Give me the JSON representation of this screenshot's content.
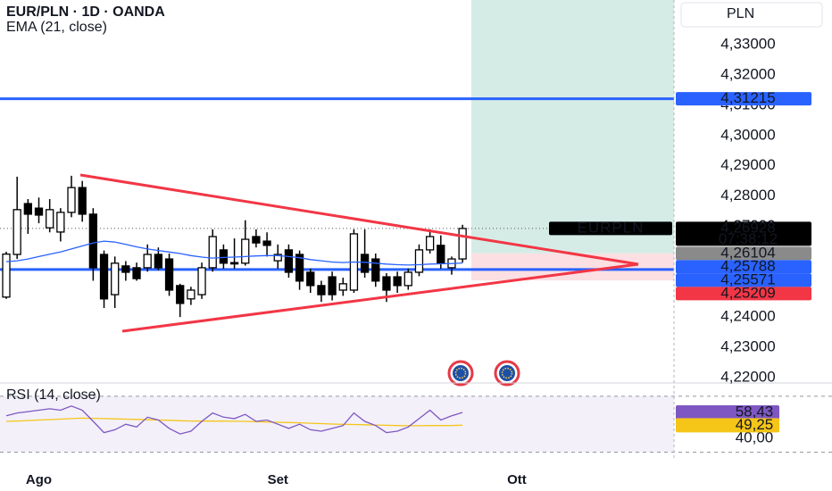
{
  "chart_data": {
    "type": "candlestick",
    "title": "EUR/PLN · 1D · OANDA",
    "currency": "PLN",
    "categories": [
      null,
      null,
      null,
      "Ago",
      null,
      null,
      null,
      null,
      null,
      null,
      null,
      null,
      null,
      null,
      null,
      null,
      null,
      null,
      null,
      null,
      null,
      null,
      null,
      null,
      null,
      "Set",
      null,
      null,
      null,
      null,
      null,
      null,
      null,
      null,
      null,
      null,
      null,
      null,
      null,
      null,
      null,
      null,
      null,
      null,
      null,
      null,
      null,
      "Ott"
    ],
    "open": [
      4.2466,
      4.2607,
      4.2775,
      4.276,
      4.2695,
      4.2681,
      4.2746,
      4.2828,
      4.274,
      4.2607,
      4.2474,
      4.2569,
      4.2563,
      4.2563,
      4.2607,
      4.2592,
      4.2504,
      4.246,
      4.2474,
      4.2563,
      4.2622,
      4.258,
      4.2578,
      4.2666,
      4.2651,
      4.2586,
      4.2622,
      4.2607,
      4.2548,
      4.2504,
      4.2533,
      4.2489,
      4.2489,
      4.2607,
      4.2592,
      4.2533,
      4.2533,
      4.2504,
      4.2548,
      4.2622,
      4.2637,
      4.2563,
      4.2592,
      null,
      null,
      null,
      null,
      null
    ],
    "high": [
      4.2616,
      4.2864,
      4.279,
      4.2795,
      4.279,
      4.276,
      4.2867,
      4.285,
      4.276,
      4.262,
      4.26,
      4.2585,
      4.258,
      4.264,
      4.263,
      4.261,
      4.251,
      4.25,
      4.258,
      4.269,
      4.264,
      4.266,
      4.272,
      4.269,
      4.268,
      4.264,
      4.264,
      4.262,
      4.256,
      4.252,
      4.255,
      4.253,
      4.269,
      4.269,
      4.261,
      4.2545,
      4.255,
      4.256,
      4.264,
      4.269,
      4.267,
      4.26,
      4.2705,
      null,
      null,
      null,
      null,
      null
    ],
    "low": [
      4.246,
      4.2592,
      4.2675,
      4.271,
      4.268,
      4.265,
      4.273,
      4.2715,
      4.252,
      4.243,
      4.243,
      4.252,
      4.252,
      4.255,
      4.2555,
      4.247,
      4.24,
      4.244,
      4.246,
      4.255,
      4.256,
      4.256,
      4.257,
      4.263,
      4.26,
      4.256,
      4.253,
      4.249,
      4.248,
      4.245,
      4.2455,
      4.247,
      4.248,
      4.253,
      4.25,
      4.245,
      4.248,
      4.249,
      4.2535,
      4.261,
      4.256,
      4.254,
      4.258,
      null,
      null,
      null,
      null,
      null
    ],
    "close": [
      4.2608,
      4.2755,
      4.274,
      4.2737,
      4.2755,
      4.2746,
      4.2828,
      4.274,
      4.2563,
      4.246,
      4.2578,
      4.2548,
      4.2527,
      4.2607,
      4.2563,
      4.2489,
      4.2445,
      4.2489,
      4.2563,
      4.2666,
      4.2578,
      4.2577,
      4.2657,
      4.2645,
      4.2637,
      4.2607,
      4.2548,
      4.2519,
      4.2504,
      4.2474,
      4.2474,
      4.251,
      4.2675,
      4.2548,
      4.2519,
      4.2489,
      4.2504,
      4.2548,
      4.2622,
      4.2666,
      4.2578,
      4.2592,
      4.26928,
      null,
      null,
      null,
      null,
      null
    ],
    "up_color": "#ffffff",
    "down_color": "#000000",
    "ylim": [
      4.2185,
      4.3448
    ],
    "yticks": [
      {
        "value": 4.22,
        "label": "4,22000"
      },
      {
        "value": 4.23,
        "label": "4,23000"
      },
      {
        "value": 4.24,
        "label": "4,24000"
      },
      {
        "value": 4.25,
        "label": "4,25000"
      },
      {
        "value": 4.26,
        "label": "4,26000"
      },
      {
        "value": 4.27,
        "label": "4,27000"
      },
      {
        "value": 4.28,
        "label": "4,28000"
      },
      {
        "value": 4.29,
        "label": "4,29000"
      },
      {
        "value": 4.3,
        "label": "4,30000"
      },
      {
        "value": 4.31,
        "label": "4,31000"
      },
      {
        "value": 4.32,
        "label": "4,32000"
      },
      {
        "value": 4.33,
        "label": "4,33000"
      }
    ],
    "last_price": {
      "symbol": "EURPLN",
      "label": "4,26928",
      "countdown": "07:38:12"
    },
    "ema": {
      "label": "EMA (21, close)",
      "color": "#2962ff",
      "last_label": "4,25788",
      "values": [
        4.2583,
        4.2586,
        4.2592,
        4.26,
        4.2608,
        4.2615,
        4.2625,
        4.2635,
        4.2645,
        4.2651,
        4.2648,
        4.264,
        4.2632,
        4.2625,
        4.262,
        4.2615,
        4.261,
        4.2603,
        4.2598,
        4.2595,
        4.2597,
        4.2598,
        4.26,
        4.2602,
        4.2603,
        4.2603,
        4.26,
        4.2596,
        4.259,
        4.2586,
        4.2582,
        4.258,
        4.2582,
        4.2581,
        4.2578,
        4.2575,
        4.2573,
        4.2572,
        4.2573,
        4.2575,
        4.2576,
        4.2577,
        4.25788,
        null,
        null,
        null,
        null,
        null
      ]
    },
    "levels": [
      {
        "value": 4.31215,
        "label": "4,31215"
      },
      {
        "value": 4.25571,
        "label": "4,25571"
      }
    ],
    "level_color": "#2962ff",
    "position": {
      "entry": {
        "value": 4.26104,
        "label": "4,26104"
      },
      "stop": {
        "value": 4.25209,
        "label": "4,25209"
      },
      "profit_color": "#d5ece6",
      "loss_color": "#fbdfe2",
      "entry_color": "#8a8a8a",
      "stop_color": "#f23645"
    },
    "rsi": {
      "title": "RSI (14, close)",
      "color": "#7e57c2",
      "ma_color": "#f5c518",
      "last_label": "58,43",
      "ma_last_label": "49,25",
      "ylim": [
        15,
        75
      ],
      "yticks": [
        {
          "value": 40,
          "label": "40,00"
        }
      ],
      "bands": [
        70,
        30
      ],
      "values": [
        56,
        58,
        59,
        60,
        61,
        60,
        63,
        60,
        52,
        44,
        46,
        50,
        48,
        55,
        53,
        47,
        43,
        45,
        52,
        58,
        55,
        54,
        57,
        52,
        53,
        50,
        47,
        50,
        46,
        45,
        47,
        49,
        58,
        52,
        49,
        44,
        45,
        48,
        54,
        60,
        53,
        56,
        58.43,
        null,
        null,
        null,
        null,
        null
      ],
      "ma_values": [
        52,
        52.3,
        52.6,
        53,
        53.3,
        53.6,
        54,
        54.3,
        54.2,
        54,
        53.8,
        53.6,
        53.4,
        53.2,
        53,
        52.8,
        52.5,
        52.3,
        52.2,
        52.2,
        52.2,
        52.1,
        52,
        51.8,
        51.6,
        51.4,
        51.2,
        51,
        50.7,
        50.4,
        50.1,
        49.9,
        49.8,
        49.6,
        49.4,
        49.2,
        49,
        48.9,
        48.9,
        49,
        49,
        49.1,
        49.25,
        null,
        null,
        null,
        null,
        null
      ]
    }
  }
}
